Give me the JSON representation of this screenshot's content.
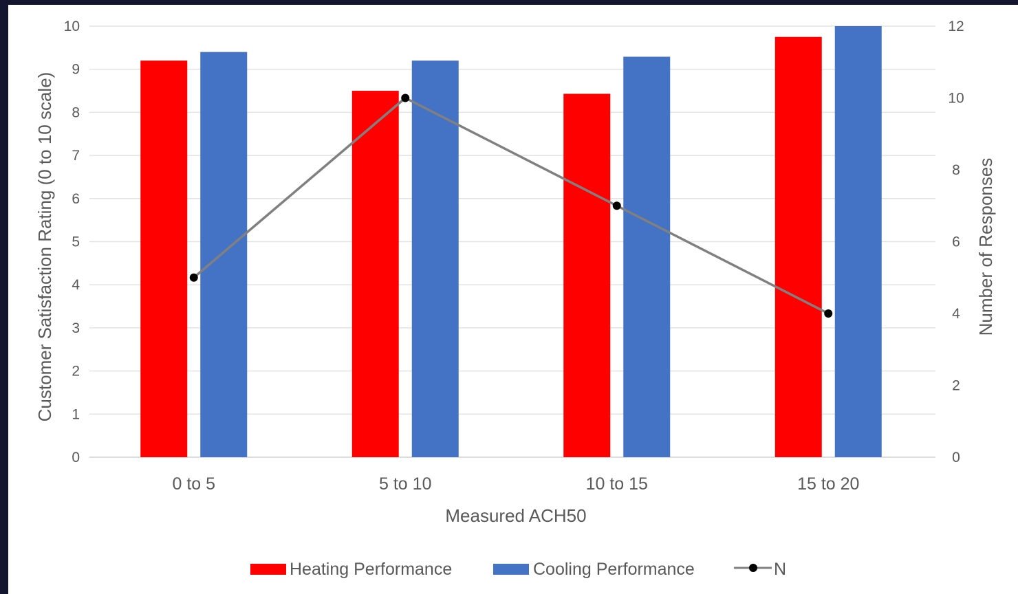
{
  "chart_data": {
    "type": "bar",
    "categories": [
      "0 to 5",
      "5 to 10",
      "10 to 15",
      "15 to 20"
    ],
    "series": [
      {
        "name": "Heating Performance",
        "kind": "bar",
        "axis": "left",
        "color": "#ff0000",
        "values": [
          9.2,
          8.5,
          8.43,
          9.75
        ]
      },
      {
        "name": "Cooling Performance",
        "kind": "bar",
        "axis": "left",
        "color": "#4472c4",
        "values": [
          9.4,
          9.2,
          9.29,
          10.0
        ]
      },
      {
        "name": "N",
        "kind": "line",
        "axis": "right",
        "color": "#808080",
        "marker_color": "#000000",
        "values": [
          5,
          10,
          7,
          4
        ]
      }
    ],
    "xlabel": "Measured ACH50",
    "ylabel": "Customer Satisfaction Rating (0 to 10 scale)",
    "y2label": "Number of Responses",
    "ylim": [
      0,
      10
    ],
    "y2lim": [
      0,
      12
    ],
    "yticks": [
      "0",
      "1",
      "2",
      "3",
      "4",
      "5",
      "6",
      "7",
      "8",
      "9",
      "10"
    ],
    "y2ticks": [
      "0",
      "2",
      "4",
      "6",
      "8",
      "10",
      "12"
    ],
    "grid": true,
    "legend_position": "bottom"
  }
}
